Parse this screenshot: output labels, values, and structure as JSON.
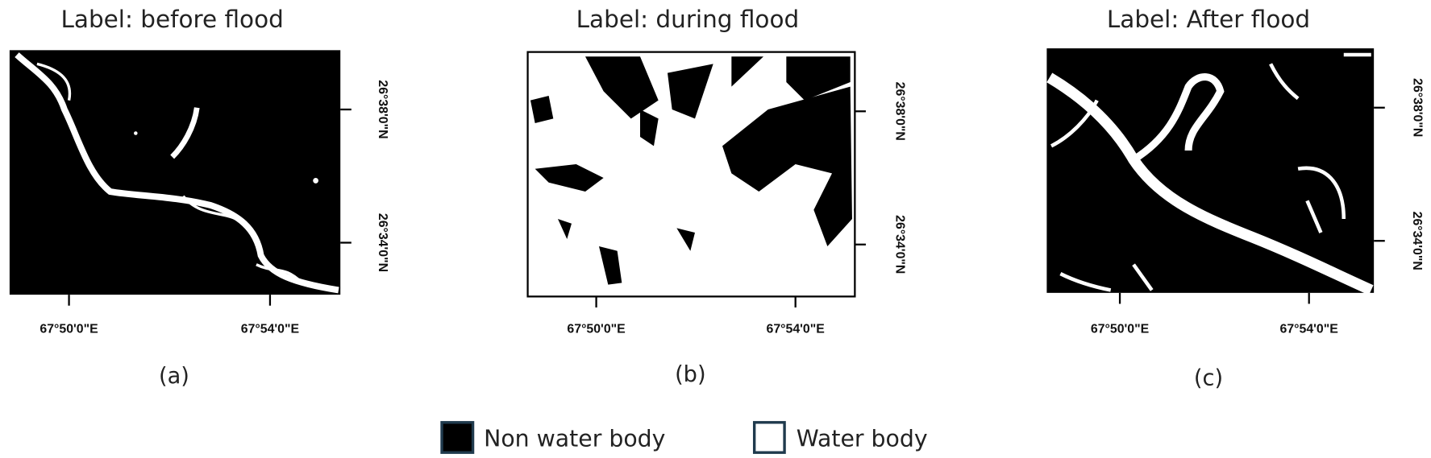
{
  "panels": [
    {
      "title": "Label: before flood",
      "caption": "(a)",
      "xticks": [
        "67°50'0\"E",
        "67°54'0\"E"
      ],
      "yticks": [
        "26°38'0\"N",
        "26°34'0\"N"
      ]
    },
    {
      "title": "Label: during flood",
      "caption": "(b)",
      "xticks": [
        "67°50'0\"E",
        "67°54'0\"E"
      ],
      "yticks": [
        "26°38'0\"N",
        "26°34'0\"N"
      ]
    },
    {
      "title": "Label: After flood",
      "caption": "(c)",
      "xticks": [
        "67°50'0\"E",
        "67°54'0\"E"
      ],
      "yticks": [
        "26°38'0\"N",
        "26°34'0\"N"
      ]
    }
  ],
  "legend": [
    {
      "label": "Non water body"
    },
    {
      "label": "Water body"
    }
  ]
}
